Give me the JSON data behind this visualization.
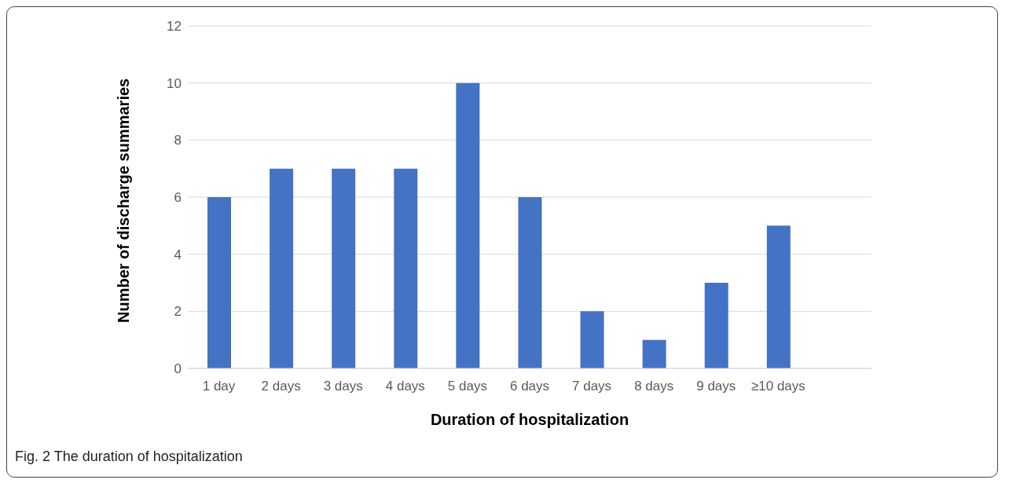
{
  "chart_data": {
    "type": "bar",
    "xlabel": "Duration of hospitalization",
    "ylabel": "Number of discharge summaries",
    "categories": [
      "1 day",
      "2 days",
      "3 days",
      "4 days",
      "5 days",
      "6 days",
      "7 days",
      "8 days",
      "9 days",
      "≥10 days",
      null
    ],
    "values": [
      6,
      7,
      7,
      7,
      10,
      6,
      2,
      1,
      3,
      5,
      null
    ],
    "color": "#4472c4",
    "ylim": [
      0,
      12
    ],
    "yticks": [
      0,
      2,
      4,
      6,
      8,
      10,
      12
    ],
    "grid": "y",
    "annotations": [
      "Fig. 2 The duration of hospitalization"
    ]
  }
}
